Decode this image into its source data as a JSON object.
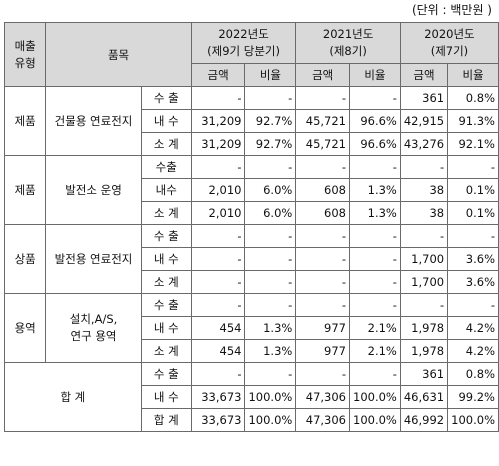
{
  "unit_note": "(단위 : 백만원 )",
  "headers": {
    "sales_type": "매출\n유형",
    "item": "품목",
    "years": [
      {
        "year": "2022년도",
        "period": "(제9기 당분기)"
      },
      {
        "year": "2021년도",
        "period": "(제8기)"
      },
      {
        "year": "2020년도",
        "period": "(제7기)"
      }
    ],
    "amount": "금액",
    "ratio": "비율"
  },
  "groups": [
    {
      "type": "제품",
      "item": "건물용 연료전지",
      "rows": [
        {
          "sub": "수 출",
          "v": [
            "-",
            "-",
            "-",
            "-",
            "361",
            "0.8%"
          ]
        },
        {
          "sub": "내 수",
          "v": [
            "31,209",
            "92.7%",
            "45,721",
            "96.6%",
            "42,915",
            "91.3%"
          ]
        },
        {
          "sub": "소 계",
          "v": [
            "31,209",
            "92.7%",
            "45,721",
            "96.6%",
            "43,276",
            "92.1%"
          ]
        }
      ]
    },
    {
      "type": "제품",
      "item": "발전소 운영",
      "rows": [
        {
          "sub": "수출",
          "v": [
            "-",
            "-",
            "-",
            "-",
            "-",
            "-"
          ]
        },
        {
          "sub": "내수",
          "v": [
            "2,010",
            "6.0%",
            "608",
            "1.3%",
            "38",
            "0.1%"
          ]
        },
        {
          "sub": "소 계",
          "v": [
            "2,010",
            "6.0%",
            "608",
            "1.3%",
            "38",
            "0.1%"
          ]
        }
      ]
    },
    {
      "type": "상품",
      "item": "발전용 연료전지",
      "rows": [
        {
          "sub": "수 출",
          "v": [
            "-",
            "-",
            "-",
            "-",
            "-",
            "-"
          ]
        },
        {
          "sub": "내 수",
          "v": [
            "-",
            "-",
            "-",
            "-",
            "1,700",
            "3.6%"
          ]
        },
        {
          "sub": "소 계",
          "v": [
            "-",
            "-",
            "-",
            "-",
            "1,700",
            "3.6%"
          ]
        }
      ]
    },
    {
      "type": "용역",
      "item": "설치,A/S,\n연구 용역",
      "rows": [
        {
          "sub": "수 출",
          "v": [
            "-",
            "-",
            "-",
            "-",
            "-",
            "-"
          ]
        },
        {
          "sub": "내 수",
          "v": [
            "454",
            "1.3%",
            "977",
            "2.1%",
            "1,978",
            "4.2%"
          ]
        },
        {
          "sub": "소 계",
          "v": [
            "454",
            "1.3%",
            "977",
            "2.1%",
            "1,978",
            "4.2%"
          ]
        }
      ]
    }
  ],
  "total": {
    "label": "합 계",
    "rows": [
      {
        "sub": "수 출",
        "v": [
          "-",
          "-",
          "-",
          "-",
          "361",
          "0.8%"
        ]
      },
      {
        "sub": "내 수",
        "v": [
          "33,673",
          "100.0%",
          "47,306",
          "100.0%",
          "46,631",
          "99.2%"
        ]
      },
      {
        "sub": "합 계",
        "v": [
          "33,673",
          "100.0%",
          "47,306",
          "100.0%",
          "46,992",
          "100.0%"
        ]
      }
    ]
  }
}
